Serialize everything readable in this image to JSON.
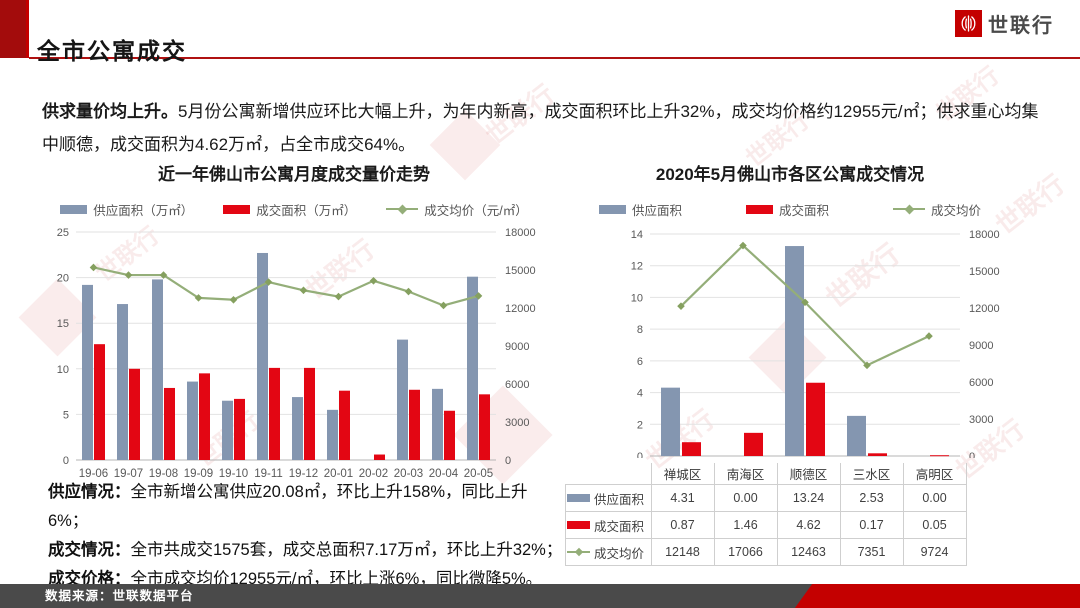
{
  "header": {
    "title": "全市公寓成交",
    "logo_text": "世联行"
  },
  "intro": {
    "lead": "供求量价均上升。",
    "text": "5月份公寓新增供应环比大幅上升，为年内新高，成交面积环比上升32%，成交均价格约12955元/㎡；供求重心均集中顺德，成交面积为4.62万㎡，占全市成交64%。"
  },
  "chart_data": [
    {
      "type": "bar+line",
      "title": "近一年佛山市公寓月度成交量价走势",
      "categories": [
        "19-06",
        "19-07",
        "19-08",
        "19-09",
        "19-10",
        "19-11",
        "19-12",
        "20-01",
        "20-02",
        "20-03",
        "20-04",
        "20-05"
      ],
      "series": [
        {
          "name": "供应面积（万㎡）",
          "type": "bar",
          "axis": "y1",
          "color": "#8496b0",
          "values": [
            19.2,
            17.1,
            19.8,
            8.6,
            6.5,
            22.7,
            6.9,
            5.5,
            0,
            13.2,
            7.8,
            20.1
          ]
        },
        {
          "name": "成交面积（万㎡）",
          "type": "bar",
          "axis": "y1",
          "color": "#e30613",
          "values": [
            12.7,
            10.0,
            7.9,
            9.5,
            6.7,
            10.1,
            10.1,
            7.6,
            0.6,
            7.7,
            5.4,
            7.2
          ]
        },
        {
          "name": "成交均价（元/㎡）",
          "type": "line",
          "axis": "y2",
          "color": "#94ae79",
          "values": [
            15200,
            14600,
            14600,
            12800,
            12650,
            14050,
            13400,
            12900,
            14150,
            13300,
            12200,
            12955
          ]
        }
      ],
      "y1": {
        "min": 0,
        "max": 25,
        "step": 5
      },
      "y2": {
        "min": 0,
        "max": 18000,
        "step": 3000
      },
      "grid": true,
      "legend_position": "top",
      "xlabel": "",
      "ylabel": ""
    },
    {
      "type": "bar+line",
      "title": "2020年5月佛山市各区公寓成交情况",
      "categories": [
        "禅城区",
        "南海区",
        "顺德区",
        "三水区",
        "高明区"
      ],
      "series": [
        {
          "name": "供应面积",
          "type": "bar",
          "axis": "y1",
          "color": "#8496b0",
          "values": [
            4.31,
            0.0,
            13.24,
            2.53,
            0.0
          ],
          "display": [
            "4.31",
            "0.00",
            "13.24",
            "2.53",
            "0.00"
          ]
        },
        {
          "name": "成交面积",
          "type": "bar",
          "axis": "y1",
          "color": "#e30613",
          "values": [
            0.87,
            1.46,
            4.62,
            0.17,
            0.05
          ],
          "display": [
            "0.87",
            "1.46",
            "4.62",
            "0.17",
            "0.05"
          ]
        },
        {
          "name": "成交均价",
          "type": "line",
          "axis": "y2",
          "color": "#94ae79",
          "values": [
            12148,
            17066,
            12463,
            7351,
            9724
          ],
          "display": [
            "12148",
            "17066",
            "12463",
            "7351",
            "9724"
          ]
        }
      ],
      "y1": {
        "min": 0,
        "max": 14,
        "step": 2
      },
      "y2": {
        "min": 0,
        "max": 18000,
        "step": 3000
      },
      "grid": true,
      "legend_position": "top",
      "has_data_table": true,
      "xlabel": "",
      "ylabel": ""
    }
  ],
  "summary": {
    "items": [
      {
        "label": "供应情况：",
        "text": "全市新增公寓供应20.08㎡，环比上升158%，同比上升6%；"
      },
      {
        "label": "成交情况：",
        "text": "全市共成交1575套，成交总面积7.17万㎡，环比上升32%；"
      },
      {
        "label": "成交价格：",
        "text": "全市成交均价12955元/㎡，环比上涨6%，同比微降5%。"
      }
    ]
  },
  "footer": {
    "source": "数据来源：世联数据平台"
  },
  "colors": {
    "accent_red": "#b01111",
    "bar_gray": "#8496b0",
    "bar_red": "#e30613",
    "line_green": "#94ae79",
    "marker_green": "#85a05f",
    "footer_gray": "#4a4a4a",
    "footer_red": "#c40000"
  }
}
